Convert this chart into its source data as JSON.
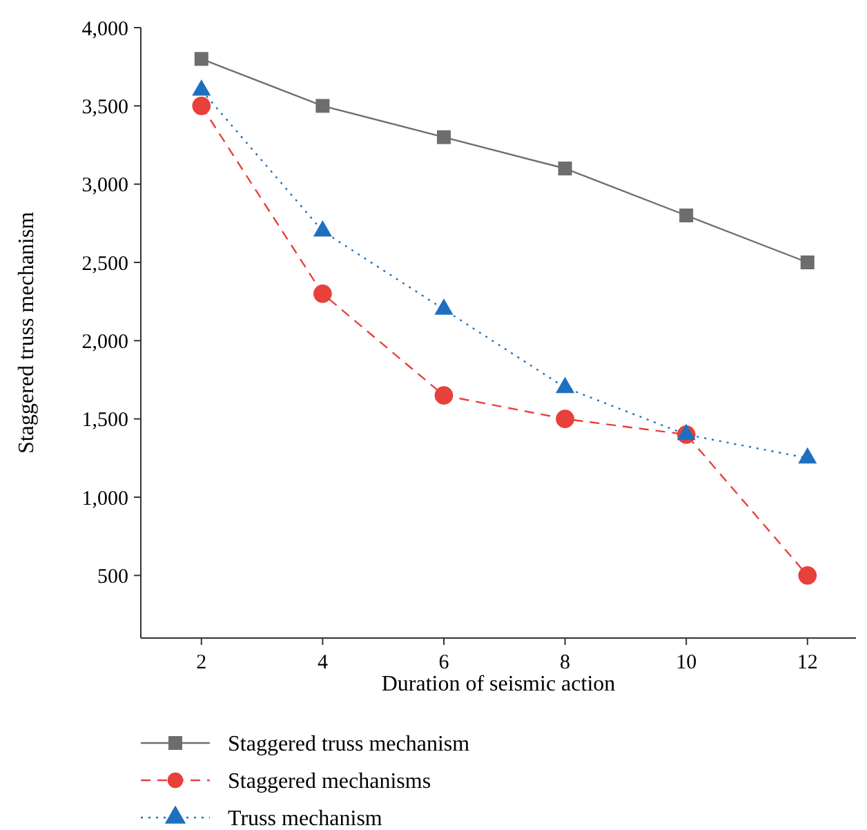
{
  "chart_data": {
    "type": "line",
    "xlabel": "Duration of seismic action",
    "ylabel": "Staggered truss mechanism",
    "x": [
      2,
      4,
      6,
      8,
      10,
      12
    ],
    "xlim": [
      1,
      12.8
    ],
    "xticks": [
      2,
      4,
      6,
      8,
      10,
      12
    ],
    "ylim": [
      100,
      4000
    ],
    "yticks": [
      500,
      {
        "value": 1000,
        "label": "1,000"
      },
      {
        "value": 1500,
        "label": "1,500"
      },
      {
        "value": 2000,
        "label": "2,000"
      },
      {
        "value": 2500,
        "label": "2,500"
      },
      {
        "value": 3000,
        "label": "3,000"
      },
      {
        "value": 3500,
        "label": "3,500"
      },
      {
        "value": 4000,
        "label": "4,000"
      }
    ],
    "grid": false,
    "legend": "bottom",
    "series": [
      {
        "name": "Staggered truss mechanism",
        "color": "#6d6d6d",
        "marker": "square",
        "line_style": "solid",
        "values": [
          3800,
          3500,
          3300,
          3100,
          2800,
          2500
        ]
      },
      {
        "name": "Staggered mechanisms",
        "color": "#e8403a",
        "marker": "circle",
        "line_style": "dashed",
        "values": [
          3500,
          2300,
          1650,
          1500,
          1400,
          500
        ]
      },
      {
        "name": "Truss mechanism",
        "color": "#1f6fc0",
        "marker": "triangle",
        "line_style": "dotted",
        "values": [
          3600,
          2700,
          2200,
          1700,
          1400,
          1250
        ]
      }
    ]
  }
}
